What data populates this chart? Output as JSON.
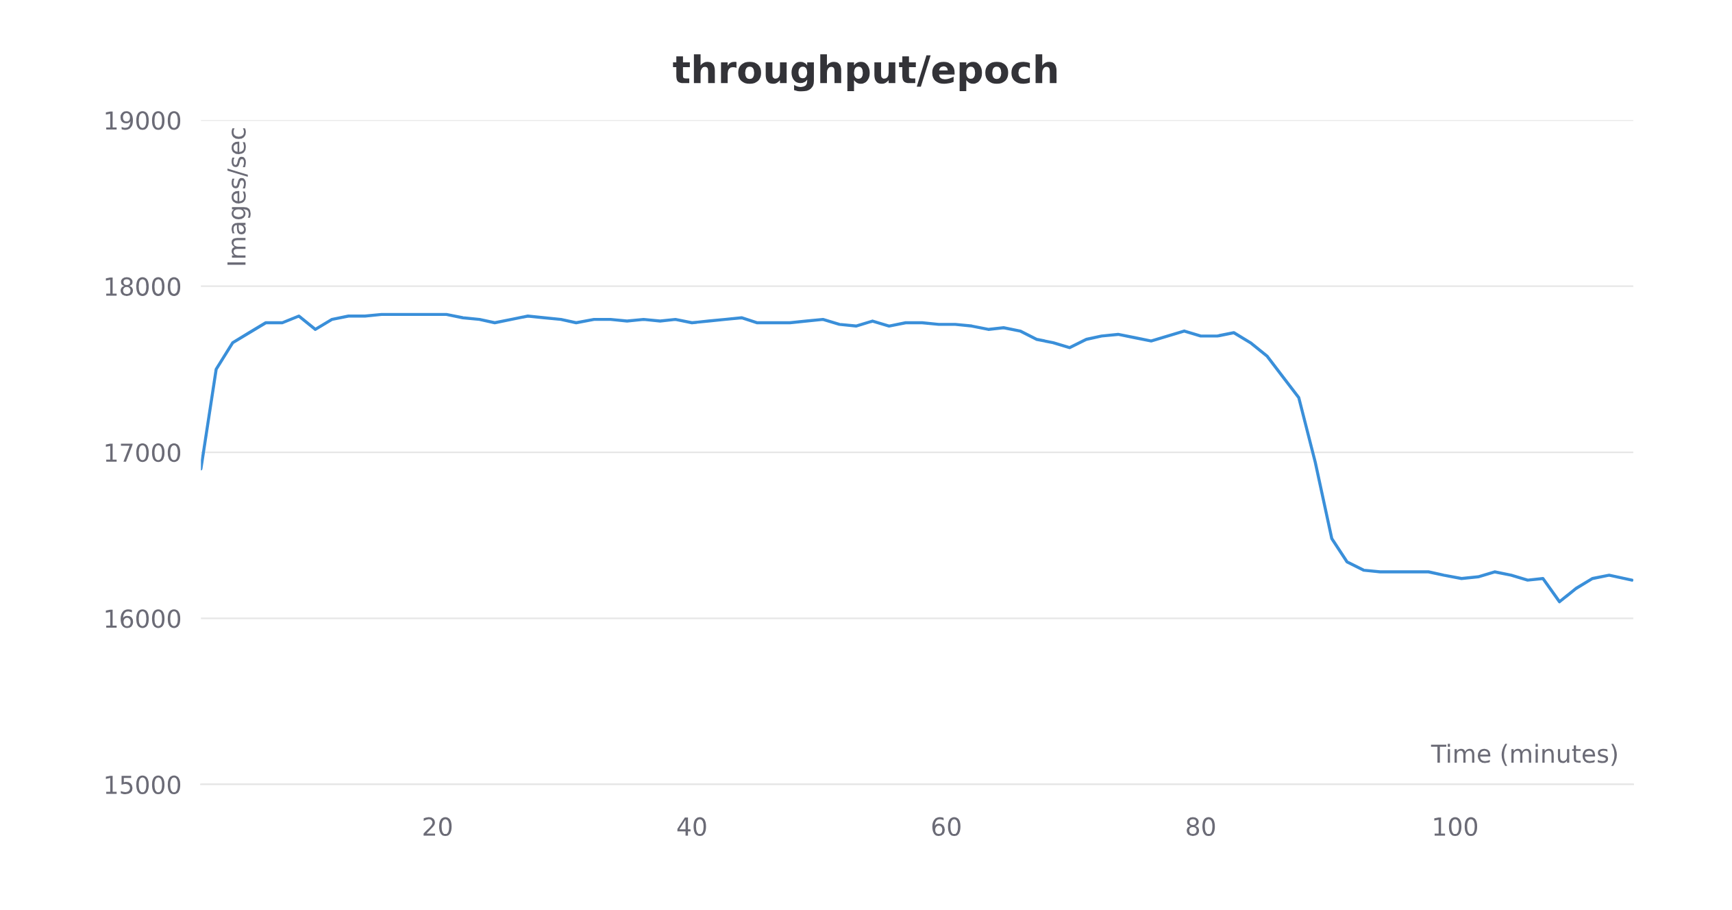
{
  "chart_data": {
    "type": "line",
    "title": "throughput/epoch",
    "xlabel": "Time (minutes)",
    "ylabel": "Images/sec",
    "x": [
      1.4,
      2.6,
      3.9,
      5.2,
      6.5,
      7.8,
      9.1,
      10.4,
      11.7,
      13.0,
      14.3,
      15.6,
      16.9,
      18.2,
      19.5,
      20.7,
      22.0,
      23.3,
      24.5,
      25.8,
      27.1,
      28.4,
      29.7,
      30.9,
      32.3,
      33.6,
      34.9,
      36.2,
      37.5,
      38.7,
      40.0,
      41.3,
      42.6,
      43.9,
      45.1,
      46.4,
      47.7,
      49.0,
      50.3,
      51.6,
      52.9,
      54.2,
      55.5,
      56.8,
      58.1,
      59.4,
      60.7,
      62.0,
      63.3,
      64.5,
      65.8,
      67.1,
      68.4,
      69.7,
      71.0,
      72.2,
      73.5,
      74.8,
      76.1,
      77.4,
      78.7,
      80.0,
      81.3,
      82.6,
      83.9,
      85.2,
      86.4,
      87.7,
      89.0,
      90.3,
      91.5,
      92.8,
      94.1,
      95.3,
      96.6,
      97.9,
      99.1,
      100.5,
      101.8,
      103.1,
      104.4,
      105.7,
      106.9,
      108.2,
      109.5,
      110.8,
      112.1,
      113.9
    ],
    "series": [
      {
        "color": "#3a8fd9",
        "values": [
          16900,
          17500,
          17660,
          17720,
          17780,
          17780,
          17820,
          17740,
          17800,
          17820,
          17820,
          17830,
          17830,
          17830,
          17830,
          17830,
          17810,
          17800,
          17780,
          17800,
          17820,
          17810,
          17800,
          17780,
          17800,
          17800,
          17790,
          17800,
          17790,
          17800,
          17780,
          17790,
          17800,
          17810,
          17780,
          17780,
          17780,
          17790,
          17800,
          17770,
          17760,
          17790,
          17760,
          17780,
          17780,
          17770,
          17770,
          17760,
          17740,
          17750,
          17730,
          17680,
          17660,
          17630,
          17680,
          17700,
          17710,
          17690,
          17670,
          17700,
          17730,
          17700,
          17700,
          17720,
          17660,
          17580,
          17460,
          17330,
          16940,
          16480,
          16340,
          16290,
          16280,
          16280,
          16280,
          16280,
          16260,
          16240,
          16250,
          16280,
          16260,
          16230,
          16240,
          16100,
          16180,
          16240,
          16260,
          16230
        ]
      }
    ],
    "xlim": [
      1.4,
      114
    ],
    "ylim": [
      15000,
      19000
    ],
    "xticks": [
      20,
      40,
      60,
      80,
      100
    ],
    "yticks": [
      15000,
      16000,
      17000,
      18000,
      19000
    ],
    "grid": "y",
    "marker": "none",
    "line_style": "solid"
  }
}
